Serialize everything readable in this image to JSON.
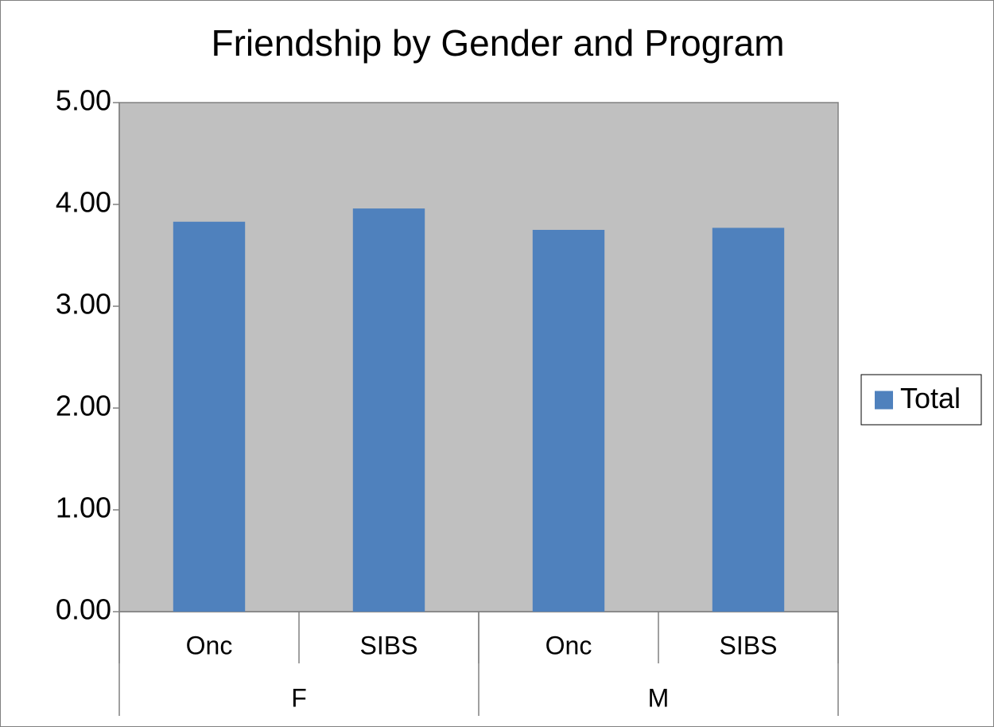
{
  "chart_data": {
    "type": "bar",
    "title": "Friendship by Gender and Program",
    "categories": [
      "Onc",
      "SIBS",
      "Onc",
      "SIBS"
    ],
    "groups": [
      "F",
      "M"
    ],
    "series": [
      {
        "name": "Total",
        "color": "#4f81bd",
        "values": [
          3.83,
          3.96,
          3.75,
          3.77
        ]
      }
    ],
    "ylim": [
      0,
      5
    ],
    "yticks": [
      {
        "value": 0,
        "label": "0.00"
      },
      {
        "value": 1,
        "label": "1.00"
      },
      {
        "value": 2,
        "label": "2.00"
      },
      {
        "value": 3,
        "label": "3.00"
      },
      {
        "value": 4,
        "label": "4.00"
      },
      {
        "value": 5,
        "label": "5.00"
      }
    ],
    "legend": "right"
  }
}
